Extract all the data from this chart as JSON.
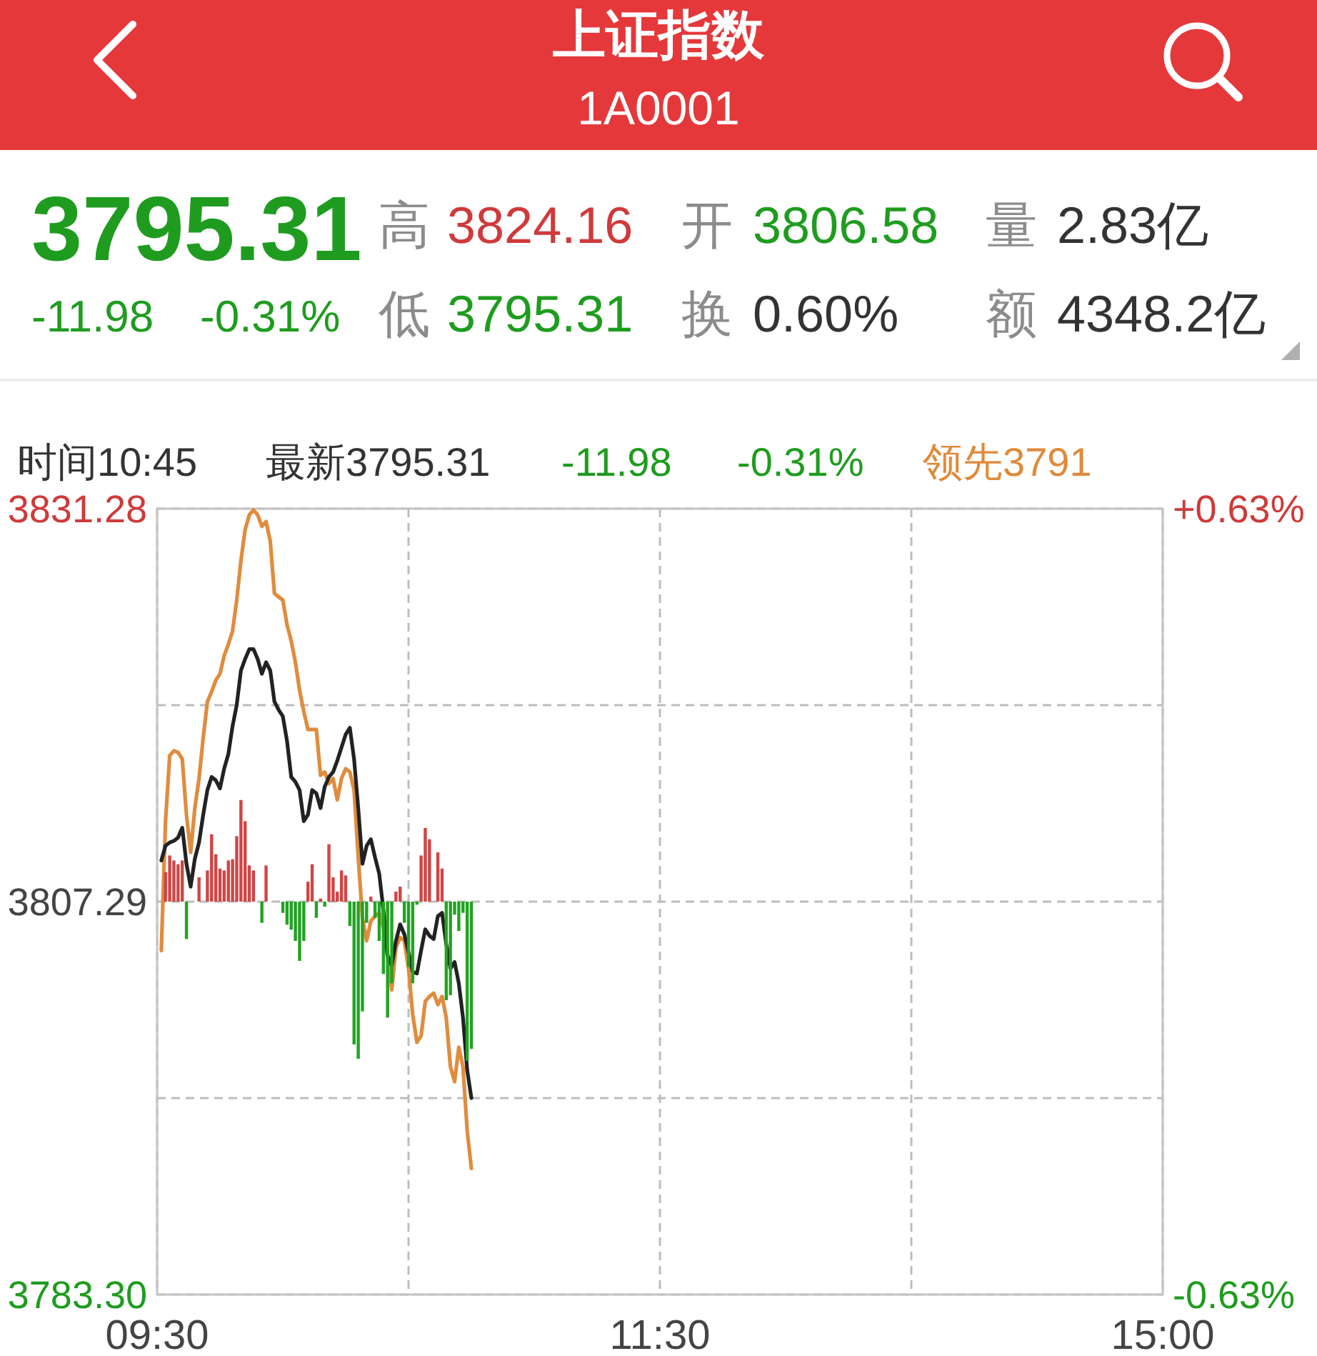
{
  "chart_data": {
    "type": "line",
    "title": "上证指数",
    "subtitle": "1A0001",
    "annotations": [
      "3795.31",
      "-11.98",
      "-0.31%",
      "高",
      "3824.16",
      "开",
      "3806.58",
      "量",
      "2.83亿",
      "低",
      "3795.31",
      "换",
      "0.60%",
      "额",
      "4348.2亿",
      "时间10:45",
      "最新3795.31",
      "-11.98",
      "-0.31%",
      "领先3791"
    ],
    "categories": [
      "09:30",
      null,
      null,
      null,
      null,
      null,
      null,
      null,
      null,
      null,
      null,
      null,
      null,
      null,
      null,
      null,
      null,
      null,
      null,
      null,
      null,
      null,
      null,
      null,
      null,
      null,
      null,
      null,
      null,
      null,
      null,
      null,
      null,
      null,
      null,
      null,
      null,
      null,
      null,
      null,
      null,
      null,
      null,
      null,
      null,
      null,
      null,
      null,
      null,
      null,
      null,
      null,
      null,
      null,
      null,
      null,
      null,
      null,
      null,
      null,
      null,
      null,
      null,
      null,
      null,
      null,
      null,
      null,
      null,
      null,
      null,
      null,
      null,
      null,
      null,
      null,
      null,
      null,
      null,
      null,
      null,
      null,
      null,
      null,
      null,
      null,
      null,
      null,
      null,
      null,
      null,
      null,
      null,
      null,
      null,
      null,
      null,
      null,
      null,
      null,
      null,
      null,
      null,
      null,
      null,
      null,
      null,
      null,
      null,
      null,
      null,
      null,
      null,
      null,
      null,
      null,
      null,
      null,
      null,
      null,
      "11:30",
      null,
      null,
      null,
      null,
      null,
      null,
      null,
      null,
      null,
      null,
      null,
      null,
      null,
      null,
      null,
      null,
      null,
      null,
      null,
      null,
      null,
      null,
      null,
      null,
      null,
      null,
      null,
      null,
      null,
      null,
      null,
      null,
      null,
      null,
      null,
      null,
      null,
      null,
      null,
      null,
      null,
      null,
      null,
      null,
      null,
      null,
      null,
      null,
      null,
      null,
      null,
      null,
      null,
      null,
      null,
      null,
      null,
      null,
      null,
      null,
      null,
      null,
      null,
      null,
      null,
      null,
      null,
      null,
      null,
      null,
      null,
      null,
      null,
      null,
      null,
      null,
      null,
      null,
      null,
      null,
      null,
      null,
      null,
      null,
      null,
      null,
      null,
      null,
      null,
      null,
      null,
      null,
      null,
      null,
      null,
      null,
      null,
      null,
      null,
      null,
      null,
      null,
      null,
      null,
      null,
      null,
      null,
      null,
      null,
      null,
      null,
      null,
      null,
      null,
      null,
      null,
      null,
      null,
      null,
      "15:00"
    ],
    "ylim": [
      3783.3,
      3831.28
    ],
    "yticks": [
      {
        "value": 3783.3,
        "label": "3783.30"
      },
      {
        "value": 3795.295,
        "label": null
      },
      3807.29,
      {
        "value": 3819.285,
        "label": null
      },
      3831.28
    ],
    "y2lim": [
      -0.63,
      0.63
    ],
    "y2ticks": [
      {
        "value": -0.63,
        "label": "-0.63%"
      },
      {
        "value": 0.63,
        "label": "+0.63%"
      }
    ],
    "grid": true,
    "series": [
      {
        "color": "#e08c3e",
        "values": [
          null,
          3804.3,
          3812.2,
          3816.2,
          3816.5,
          3816.4,
          3816.0,
          3812.6,
          3810.3,
          3813.0,
          3814.8,
          3817.3,
          3819.5,
          3820.1,
          3820.8,
          3821.2,
          3822.3,
          3823.0,
          3823.8,
          3825.7,
          3828.1,
          3830.0,
          3830.9,
          3831.2,
          3830.9,
          3830.2,
          3830.5,
          3829.3,
          3826.1,
          3825.9,
          3825.7,
          3824.2,
          3823.2,
          3821.9,
          3820.2,
          3818.9,
          3817.8,
          3817.8,
          3817.8,
          3815.0,
          3815.2,
          3814.5,
          3814.8,
          3813.5,
          3814.8,
          3815.4,
          3815.2,
          3814.1,
          3810.0,
          3806.3,
          3804.9,
          3806.1,
          3806.4,
          3806.6,
          3805.7,
          3803.9,
          3801.9,
          3804.5,
          3805.1,
          3804.9,
          3803.2,
          3800.4,
          3798.7,
          3799.1,
          3801.2,
          3801.5,
          3801.7,
          3801.0,
          3801.5,
          3800.2,
          3797.2,
          3796.3,
          3798.4,
          3797.2,
          3793.3,
          3791,
          null,
          null,
          null,
          null,
          null,
          null,
          null,
          null,
          null,
          null,
          null,
          null,
          null,
          null,
          null,
          null,
          null,
          null,
          null,
          null,
          null,
          null,
          null,
          null,
          null,
          null,
          null,
          null,
          null,
          null,
          null,
          null,
          null,
          null,
          null,
          null,
          null,
          null,
          null,
          null,
          null,
          null,
          null,
          null,
          null,
          null,
          null,
          null,
          null,
          null,
          null,
          null,
          null,
          null,
          null,
          null,
          null,
          null,
          null,
          null,
          null,
          null,
          null,
          null,
          null,
          null,
          null,
          null,
          null,
          null,
          null,
          null,
          null,
          null,
          null,
          null,
          null,
          null,
          null,
          null,
          null,
          null,
          null,
          null,
          null,
          null,
          null,
          null,
          null,
          null,
          null,
          null,
          null,
          null,
          null,
          null,
          null,
          null,
          null,
          null,
          null,
          null,
          null,
          null,
          null,
          null,
          null,
          null,
          null,
          null,
          null,
          null,
          null,
          null,
          null,
          null,
          null,
          null,
          null,
          null,
          null,
          null,
          null,
          null,
          null,
          null,
          null,
          null,
          null,
          null,
          null,
          null,
          null,
          null,
          null,
          null,
          null,
          null,
          null,
          null,
          null,
          null,
          null,
          null,
          null,
          null,
          null,
          null,
          null,
          null,
          null,
          null,
          null,
          null,
          null,
          null,
          null,
          null,
          null,
          null,
          null,
          null,
          null,
          null,
          null
        ]
      },
      {
        "color": "#222222",
        "values": [
          null,
          3809.8,
          3810.7,
          3810.9,
          3811.0,
          3811.2,
          3811.8,
          3809.6,
          3808.2,
          3809.9,
          3810.9,
          3812.6,
          3814.1,
          3814.9,
          3814.7,
          3814.2,
          3815.4,
          3816.3,
          3818.0,
          3819.3,
          3821.4,
          3822.1,
          3822.7,
          3822.7,
          3822.1,
          3821.2,
          3821.9,
          3821.4,
          3819.5,
          3819.0,
          3818.6,
          3817.1,
          3814.9,
          3814.6,
          3814.1,
          3812.2,
          3812.6,
          3814.1,
          3813.9,
          3813.0,
          3814.3,
          3814.9,
          3815.2,
          3815.9,
          3816.7,
          3817.5,
          3817.9,
          3816.0,
          3813.0,
          3809.6,
          3810.7,
          3811.1,
          3810.0,
          3809.0,
          3806.8,
          3804.0,
          3803.4,
          3804.9,
          3805.9,
          3805.3,
          3804.2,
          3803.0,
          3802.9,
          3804.3,
          3805.6,
          3805.2,
          3805.0,
          3806.4,
          3806.6,
          3804.7,
          3803.2,
          3803.6,
          3802.3,
          3800.2,
          3797.0,
          3795.3,
          null,
          null,
          null,
          null,
          null,
          null,
          null,
          null,
          null,
          null,
          null,
          null,
          null,
          null,
          null,
          null,
          null,
          null,
          null,
          null,
          null,
          null,
          null,
          null,
          null,
          null,
          null,
          null,
          null,
          null,
          null,
          null,
          null,
          null,
          null,
          null,
          null,
          null,
          null,
          null,
          null,
          null,
          null,
          null,
          null,
          null,
          null,
          null,
          null,
          null,
          null,
          null,
          null,
          null,
          null,
          null,
          null,
          null,
          null,
          null,
          null,
          null,
          null,
          null,
          null,
          null,
          null,
          null,
          null,
          null,
          null,
          null,
          null,
          null,
          null,
          null,
          null,
          null,
          null,
          null,
          null,
          null,
          null,
          null,
          null,
          null,
          null,
          null,
          null,
          null,
          null,
          null,
          null,
          null,
          null,
          null,
          null,
          null,
          null,
          null,
          null,
          null,
          null,
          null,
          null,
          null,
          null,
          null,
          null,
          null,
          null,
          null,
          null,
          null,
          null,
          null,
          null,
          null,
          null,
          null,
          null,
          null,
          null,
          null,
          null,
          null,
          null,
          null,
          null,
          null,
          null,
          null,
          null,
          null,
          null,
          null,
          null,
          null,
          null,
          null,
          null,
          null,
          null,
          null,
          null,
          null,
          null,
          null,
          null,
          null,
          null,
          null,
          null,
          null,
          null,
          null,
          null,
          null,
          null,
          null,
          null,
          null,
          null,
          null,
          null
        ]
      },
      {
        "type": "bar",
        "axis": "y2",
        "values": [
          null,
          null,
          0.047,
          0.074,
          0.066,
          0.06,
          0.066,
          -0.06,
          null,
          null,
          0.039,
          null,
          0.05,
          0.108,
          0.076,
          0.053,
          0.05,
          0.066,
          0.068,
          0.105,
          0.163,
          0.129,
          0.058,
          0.05,
          null,
          -0.034,
          0.058,
          null,
          null,
          null,
          -0.018,
          -0.037,
          -0.045,
          -0.063,
          -0.095,
          -0.063,
          0.032,
          0.06,
          -0.026,
          0.005,
          -0.008,
          0.092,
          0.039,
          0.016,
          0.05,
          0.042,
          -0.039,
          -0.229,
          -0.252,
          -0.176,
          -0.034,
          0.008,
          -0.026,
          -0.063,
          -0.116,
          -0.186,
          -0.131,
          0.016,
          0.024,
          -0.034,
          -0.105,
          -0.131,
          -0.005,
          0.074,
          0.118,
          0.1,
          null,
          0.079,
          0.053,
          -0.158,
          -0.15,
          -0.021,
          -0.047,
          -0.018,
          -0.255,
          -0.236,
          null,
          null,
          null,
          null,
          null,
          null,
          null,
          null,
          null,
          null,
          null,
          null,
          null,
          null,
          null,
          null,
          null,
          null,
          null,
          null,
          null,
          null,
          null,
          null,
          null,
          null,
          null,
          null,
          null,
          null,
          null,
          null,
          null,
          null,
          null,
          null,
          null,
          null,
          null,
          null,
          null,
          null,
          null,
          null,
          null,
          null,
          null,
          null,
          null,
          null,
          null,
          null,
          null,
          null,
          null,
          null,
          null,
          null,
          null,
          null,
          null,
          null,
          null,
          null,
          null,
          null,
          null,
          null,
          null,
          null,
          null,
          null,
          null,
          null,
          null,
          null,
          null,
          null,
          null,
          null,
          null,
          null,
          null,
          null,
          null,
          null,
          null,
          null,
          null,
          null,
          null,
          null,
          null,
          null,
          null,
          null,
          null,
          null,
          null,
          null,
          null,
          null,
          null,
          null,
          null,
          null,
          null,
          null,
          null,
          null,
          null,
          null,
          null,
          null,
          null,
          null,
          null,
          null,
          null,
          null,
          null,
          null,
          null,
          null,
          null,
          null,
          null,
          null,
          null,
          null,
          null,
          null,
          null,
          null,
          null,
          null,
          null,
          null,
          null,
          null,
          null,
          null,
          null,
          null,
          null,
          null,
          null,
          null,
          null,
          null,
          null,
          null,
          null,
          null,
          null,
          null,
          null,
          null,
          null,
          null,
          null,
          null,
          null,
          null,
          null
        ],
        "colors": [
          null,
          null,
          "#d04545",
          "#d04545",
          "#d04545",
          "#d04545",
          "#d04545",
          "#22a322",
          null,
          null,
          "#d04545",
          null,
          "#d04545",
          "#d04545",
          "#d04545",
          "#d04545",
          "#d04545",
          "#d04545",
          "#d04545",
          "#d04545",
          "#d04545",
          "#d04545",
          "#d04545",
          "#d04545",
          null,
          "#22a322",
          "#d04545",
          null,
          null,
          null,
          "#22a322",
          "#22a322",
          "#22a322",
          "#22a322",
          "#22a322",
          "#22a322",
          "#d04545",
          "#d04545",
          "#22a322",
          "#d04545",
          "#22a322",
          "#d04545",
          "#d04545",
          "#d04545",
          "#d04545",
          "#d04545",
          "#22a322",
          "#22a322",
          "#22a322",
          "#22a322",
          "#22a322",
          "#d04545",
          "#22a322",
          "#22a322",
          "#22a322",
          "#22a322",
          "#22a322",
          "#d04545",
          "#d04545",
          "#22a322",
          "#22a322",
          "#22a322",
          "#22a322",
          "#d04545",
          "#d04545",
          "#d04545",
          null,
          "#d04545",
          "#d04545",
          "#22a322",
          "#22a322",
          "#22a322",
          "#22a322",
          "#22a322",
          "#22a322",
          "#22a322",
          null,
          null,
          null,
          null,
          null,
          null,
          null,
          null,
          null,
          null,
          null,
          null,
          null,
          null,
          null,
          null,
          null,
          null,
          null,
          null,
          null,
          null,
          null,
          null,
          null,
          null,
          null,
          null,
          null,
          null,
          null,
          null,
          null,
          null,
          null,
          null,
          null,
          null,
          null,
          null,
          null,
          null,
          null,
          null,
          null,
          null,
          null,
          null,
          null,
          null,
          null,
          null,
          null,
          null,
          null,
          null,
          null,
          null,
          null,
          null,
          null,
          null,
          null,
          null,
          null,
          null,
          null,
          null,
          null,
          null,
          null,
          null,
          null,
          null,
          null,
          null,
          null,
          null,
          null,
          null,
          null,
          null,
          null,
          null,
          null,
          null,
          null,
          null,
          null,
          null,
          null,
          null,
          null,
          null,
          null,
          null,
          null,
          null,
          null,
          null,
          null,
          null,
          null,
          null,
          null,
          null,
          null,
          null,
          null,
          null,
          null,
          null,
          null,
          null,
          null,
          null,
          null,
          null,
          null,
          null,
          null,
          null,
          null,
          null,
          null,
          null,
          null,
          null,
          null,
          null,
          null,
          null,
          null,
          null,
          null,
          null,
          null,
          null,
          null,
          null,
          null,
          null,
          null,
          null,
          null,
          null,
          null,
          null,
          null,
          null,
          null,
          null,
          null,
          null,
          null,
          null,
          null,
          null,
          null,
          null,
          null,
          null,
          null,
          null,
          null
        ]
      }
    ]
  }
}
